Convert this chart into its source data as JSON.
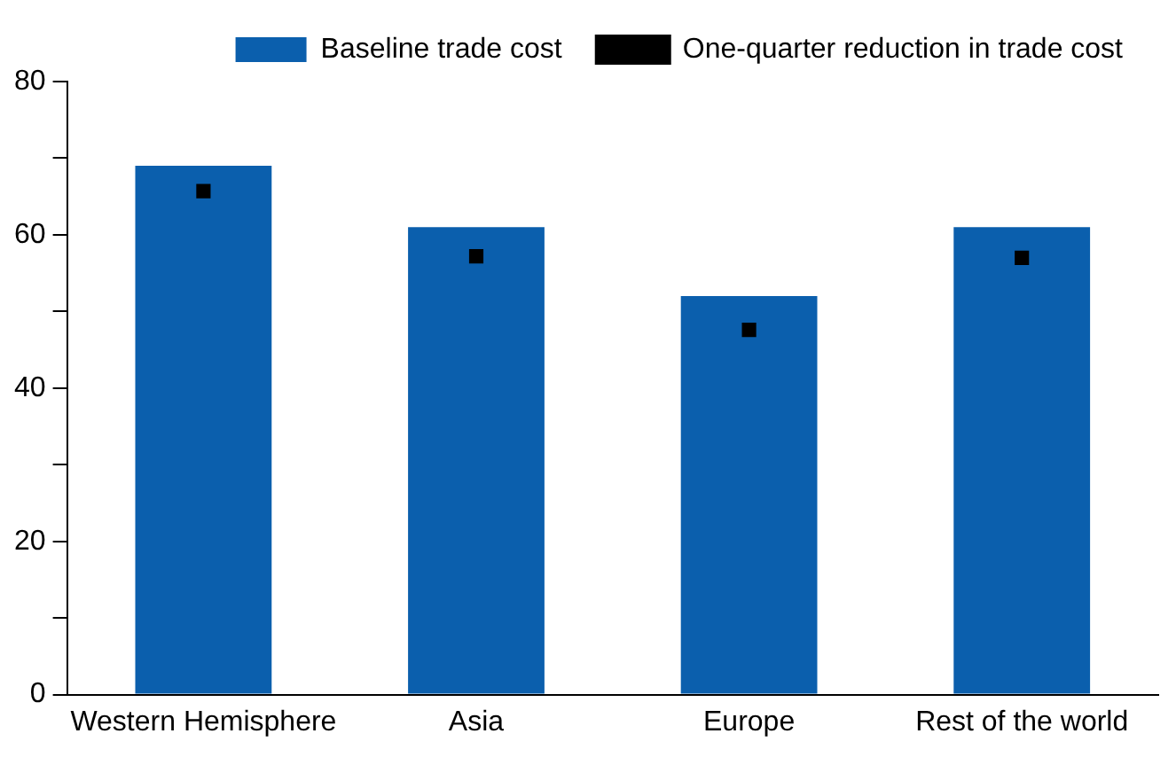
{
  "chart_data": {
    "type": "bar",
    "categories": [
      "Western Hemisphere",
      "Asia",
      "Europe",
      "Rest of the world"
    ],
    "series": [
      {
        "name": "Baseline trade cost",
        "color": "#0b5fad",
        "values": [
          69,
          61,
          52,
          61
        ]
      },
      {
        "name": "One-quarter reduction in trade cost",
        "type": "scatter",
        "color": "#000000",
        "x": [
          "Western Hemisphere",
          "Asia",
          "Europe",
          "Rest of the world"
        ],
        "values": [
          65.7,
          57.2,
          47.6,
          57
        ]
      }
    ],
    "ylim": [
      0,
      80
    ],
    "yticks": [
      0,
      {
        "value": 10,
        "label": null
      },
      20,
      {
        "value": 30,
        "label": null
      },
      40,
      {
        "value": 50,
        "label": null
      },
      60,
      {
        "value": 70,
        "label": null
      },
      80
    ],
    "grid": false,
    "legend": "top",
    "marker": "square"
  }
}
